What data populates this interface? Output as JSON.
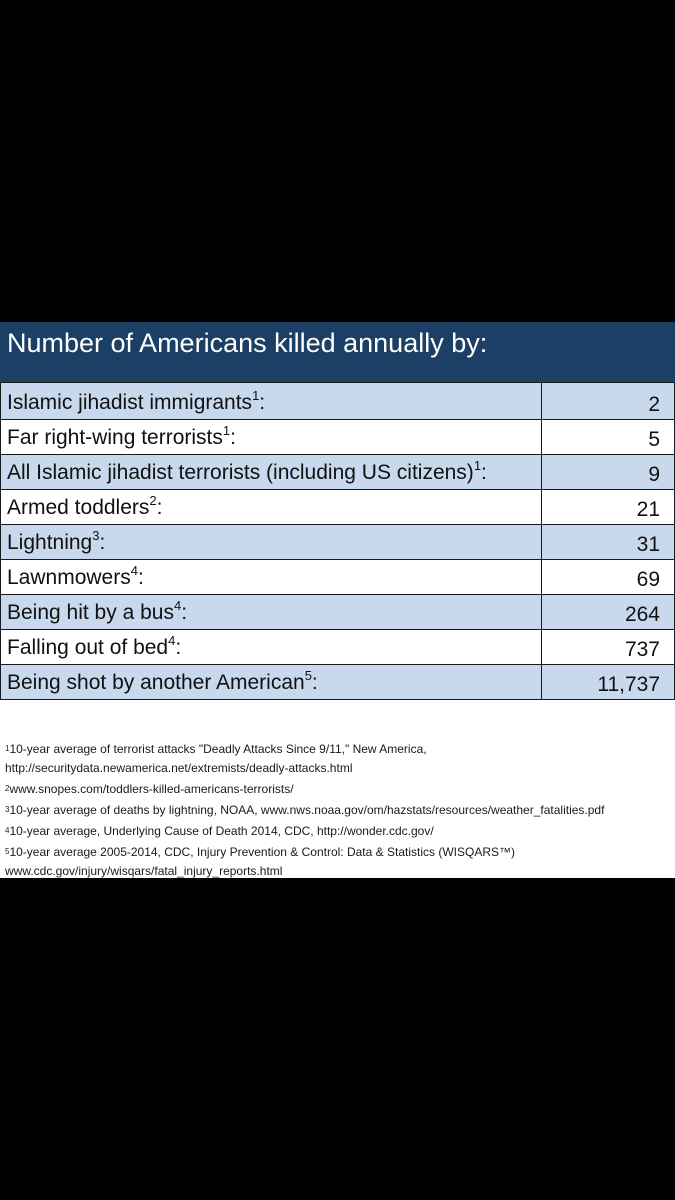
{
  "title": "Number of Americans killed annually by:",
  "colors": {
    "header_bg": "#1c3f66",
    "row_shaded": "#c8d9ee",
    "background": "#000000"
  },
  "rows": [
    {
      "label": "Islamic jihadist immigrants",
      "ref": "1",
      "value": "2"
    },
    {
      "label": "Far right-wing terrorists",
      "ref": "1",
      "value": "5"
    },
    {
      "label": "All Islamic jihadist terrorists (including US citizens)",
      "ref": "1",
      "value": "9"
    },
    {
      "label": "Armed toddlers",
      "ref": "2",
      "value": "21"
    },
    {
      "label": "Lightning",
      "ref": "3",
      "value": "31"
    },
    {
      "label": "Lawnmowers",
      "ref": "4",
      "value": "69"
    },
    {
      "label": "Being hit by a bus",
      "ref": "4",
      "value": "264"
    },
    {
      "label": "Falling out of bed",
      "ref": "4",
      "value": "737"
    },
    {
      "label": "Being shot by another American",
      "ref": "5",
      "value": "11,737"
    }
  ],
  "footnotes": [
    {
      "num": "1",
      "line1": "10-year average of terrorist attacks \"Deadly Attacks Since 9/11,\" New America,",
      "line2": "http://securitydata.newamerica.net/extremists/deadly-attacks.html"
    },
    {
      "num": "2",
      "line1": "www.snopes.com/toddlers-killed-americans-terrorists/",
      "line2": ""
    },
    {
      "num": "3",
      "line1": "10-year average of deaths by lightning, NOAA, www.nws.noaa.gov/om/hazstats/resources/weather_fatalities.pdf",
      "line2": ""
    },
    {
      "num": "4",
      "line1": "10-year average, Underlying Cause of Death 2014, CDC, http://wonder.cdc.gov/",
      "line2": ""
    },
    {
      "num": "5",
      "line1": "10-year average 2005-2014, CDC, Injury Prevention & Control: Data & Statistics (WISQARS™)",
      "line2": "www.cdc.gov/injury/wisqars/fatal_injury_reports.html"
    }
  ]
}
